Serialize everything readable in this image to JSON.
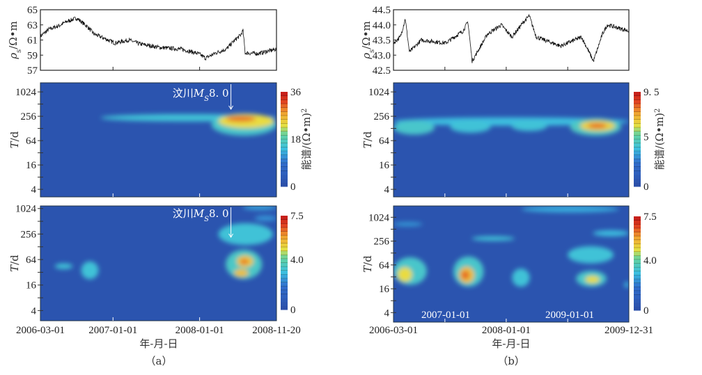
{
  "chart_data": [
    {
      "panel": "a",
      "type": "line",
      "id": "a_line",
      "ylabel": {
        "symbol": "ρ",
        "sub": "s",
        "unit": "/Ω•m"
      },
      "yticks": [
        "65",
        "63",
        "61",
        "59",
        "57"
      ],
      "ylim": [
        57,
        65
      ],
      "xlim": [
        "2006-03-01",
        "2008-11-20"
      ],
      "xticks": [
        "2007-01-01",
        "2008-01-01"
      ],
      "anchors": [
        [
          "2006-03-01",
          61.5
        ],
        [
          "2006-04-05",
          62.4
        ],
        [
          "2006-05-19",
          62.9
        ],
        [
          "2006-06-18",
          63.4
        ],
        [
          "2006-08-01",
          63.9
        ],
        [
          "2006-09-14",
          62.8
        ],
        [
          "2006-10-13",
          61.8
        ],
        [
          "2006-11-26",
          61.2
        ],
        [
          "2007-01-09",
          60.6
        ],
        [
          "2007-03-09",
          61.0
        ],
        [
          "2007-04-22",
          60.5
        ],
        [
          "2007-07-19",
          60.0
        ],
        [
          "2007-10-15",
          59.8
        ],
        [
          "2007-12-27",
          59.2
        ],
        [
          "2008-01-26",
          58.6
        ],
        [
          "2008-03-10",
          59.3
        ],
        [
          "2008-04-23",
          59.8
        ],
        [
          "2008-05-22",
          60.8
        ],
        [
          "2008-06-20",
          61.6
        ],
        [
          "2008-07-02",
          62.2
        ],
        [
          "2008-07-11",
          59.3
        ],
        [
          "2008-09-02",
          59.2
        ],
        [
          "2008-11-20",
          59.8
        ]
      ]
    },
    {
      "panel": "a",
      "type": "heatmap",
      "id": "a_s1",
      "ylabel": {
        "symbol": "T",
        "unit": "/d"
      },
      "yscale": "log2",
      "yticks": [
        "1024",
        "256",
        "64",
        "16",
        "4"
      ],
      "ylim": [
        2.6,
        1720
      ],
      "xlim": [
        "2006-03-01",
        "2008-11-20"
      ],
      "xticks": [
        "2007-01-01",
        "2008-01-01"
      ],
      "colorbar": {
        "max": 36,
        "ticks": [
          "36",
          "18",
          "0"
        ],
        "tick_values": [
          36,
          18,
          0
        ],
        "label": "能谱/(Ω•m)",
        "label_sup": "2"
      },
      "annotation": {
        "text_pre": "汶川",
        "M": "M",
        "sub": "S",
        "text_post": "8. 0",
        "date": "2008-05-12"
      },
      "blobs": [
        {
          "t": [
            "2006-11-10",
            "2008-11-20"
          ],
          "T": [
            190,
            290
          ],
          "level": 0.42
        },
        {
          "t": [
            "2008-02-20",
            "2008-11-20"
          ],
          "T": [
            85,
            300
          ],
          "level": 0.45
        },
        {
          "t": [
            "2008-03-20",
            "2008-11-10"
          ],
          "T": [
            130,
            290
          ],
          "level": 0.66
        },
        {
          "t": [
            "2008-04-20",
            "2008-08-25"
          ],
          "T": [
            190,
            260
          ],
          "level": 0.85
        }
      ]
    },
    {
      "panel": "a",
      "type": "heatmap",
      "id": "a_s2",
      "ylabel": {
        "symbol": "T",
        "unit": "/d"
      },
      "yscale": "log2",
      "yticks": [
        "1024",
        "256",
        "64",
        "16",
        "4"
      ],
      "ylim": [
        2.3,
        1180
      ],
      "xlim": [
        "2006-03-01",
        "2008-11-20"
      ],
      "colorbar": {
        "max": 7.5,
        "ticks": [
          "7.5",
          "4.0",
          "0"
        ],
        "tick_values": [
          7.5,
          4.0,
          0
        ],
        "label": "",
        "label_sup": ""
      },
      "annotation": {
        "text_pre": "汶川",
        "M": "M",
        "sub": "S",
        "text_post": "8. 0",
        "date": "2008-05-12"
      },
      "blobs": [
        {
          "t": [
            "2006-05-01",
            "2006-07-15"
          ],
          "T": [
            38,
            52
          ],
          "level": 0.42
        },
        {
          "t": [
            "2006-08-20",
            "2006-11-01"
          ],
          "T": [
            22,
            58
          ],
          "level": 0.42
        },
        {
          "t": [
            "2008-07-01",
            "2008-11-20"
          ],
          "T": [
            950,
            1250
          ],
          "level": 0.35
        },
        {
          "t": [
            "2008-08-20",
            "2008-11-20"
          ],
          "T": [
            520,
            700
          ],
          "level": 0.32
        },
        {
          "t": [
            "2008-03-20",
            "2008-11-05"
          ],
          "T": [
            140,
            460
          ],
          "level": 0.42
        },
        {
          "t": [
            "2008-04-20",
            "2008-09-20"
          ],
          "T": [
            22,
            110
          ],
          "level": 0.46
        },
        {
          "t": [
            "2008-06-05",
            "2008-08-15"
          ],
          "T": [
            42,
            80
          ],
          "level": 0.7
        },
        {
          "t": [
            "2008-05-25",
            "2008-07-25"
          ],
          "T": [
            25,
            38
          ],
          "level": 0.72
        },
        {
          "t": [
            "2008-06-20",
            "2008-07-25"
          ],
          "T": [
            50,
            65
          ],
          "level": 0.85
        }
      ]
    },
    {
      "panel": "b",
      "type": "line",
      "id": "b_line",
      "ylabel": {
        "symbol": "ρ",
        "sub": "s",
        "unit": "/Ω•m"
      },
      "yticks": [
        "44.5",
        "44.0",
        "43.5",
        "43.0",
        "42.5"
      ],
      "ylim": [
        42.5,
        44.5
      ],
      "xlim": [
        "2006-03-01",
        "2009-12-31"
      ],
      "xticks": [
        "2007-01-01",
        "2008-01-01",
        "2009-01-01"
      ],
      "anchors": [
        [
          "2006-03-01",
          43.4
        ],
        [
          "2006-04-11",
          43.6
        ],
        [
          "2006-05-10",
          44.2
        ],
        [
          "2006-06-04",
          43.1
        ],
        [
          "2006-08-14",
          43.5
        ],
        [
          "2007-01-06",
          43.4
        ],
        [
          "2007-04-19",
          43.8
        ],
        [
          "2007-05-18",
          44.1
        ],
        [
          "2007-06-12",
          42.8
        ],
        [
          "2007-09-12",
          43.7
        ],
        [
          "2007-12-03",
          44.0
        ],
        [
          "2008-02-04",
          43.6
        ],
        [
          "2008-04-14",
          44.1
        ],
        [
          "2008-05-17",
          44.3
        ],
        [
          "2008-06-28",
          43.6
        ],
        [
          "2008-11-20",
          43.3
        ],
        [
          "2009-03-24",
          43.6
        ],
        [
          "2009-05-17",
          43.0
        ],
        [
          "2009-06-03",
          42.8
        ],
        [
          "2009-07-27",
          43.7
        ],
        [
          "2009-08-25",
          44.0
        ],
        [
          "2009-12-31",
          43.8
        ]
      ]
    },
    {
      "panel": "b",
      "type": "heatmap",
      "id": "b_s1",
      "ylabel": {
        "symbol": "T",
        "unit": "/d"
      },
      "yscale": "log2",
      "yticks": [
        "1024",
        "256",
        "64",
        "16",
        "4"
      ],
      "ylim": [
        2.6,
        1720
      ],
      "xlim": [
        "2006-03-01",
        "2009-12-31"
      ],
      "xticks": [
        "2007-01-01",
        "2008-01-01",
        "2009-01-01"
      ],
      "colorbar": {
        "max": 9.5,
        "ticks": [
          "9. 5",
          "5",
          "0"
        ],
        "tick_values": [
          9.5,
          5,
          0
        ],
        "label": "能谱/(Ω•m)",
        "label_sup": "2"
      },
      "blobs": [
        {
          "t": [
            "2006-03-01",
            "2009-12-31"
          ],
          "T": [
            150,
            240
          ],
          "level": 0.4
        },
        {
          "t": [
            "2006-03-01",
            "2006-11-01"
          ],
          "T": [
            90,
            200
          ],
          "level": 0.45
        },
        {
          "t": [
            "2007-02-01",
            "2007-10-01"
          ],
          "T": [
            100,
            200
          ],
          "level": 0.42
        },
        {
          "t": [
            "2008-02-01",
            "2008-09-01"
          ],
          "T": [
            110,
            200
          ],
          "level": 0.42
        },
        {
          "t": [
            "2009-01-15",
            "2009-11-15"
          ],
          "T": [
            85,
            230
          ],
          "level": 0.47
        },
        {
          "t": [
            "2009-03-15",
            "2009-10-10"
          ],
          "T": [
            110,
            200
          ],
          "level": 0.68
        },
        {
          "t": [
            "2009-05-01",
            "2009-08-20"
          ],
          "T": [
            130,
            170
          ],
          "level": 0.86
        }
      ]
    },
    {
      "panel": "b",
      "type": "heatmap",
      "id": "b_s2",
      "ylabel": {
        "symbol": "T",
        "unit": "/d"
      },
      "yscale": "log2",
      "yticks": [
        "1024",
        "256",
        "64",
        "16",
        "4"
      ],
      "ylim": [
        2.3,
        1980
      ],
      "xlim": [
        "2006-03-01",
        "2009-12-31"
      ],
      "xtick_labels": [
        "2006-03-01",
        "2008-01-01",
        "2009-12-31"
      ],
      "inner_labels": [
        "2007-01-01",
        "2009-01-01"
      ],
      "xlabel": "年-月-日",
      "colorbar": {
        "max": 7.5,
        "ticks": [
          "7.5",
          "4.0",
          "0"
        ],
        "tick_values": [
          7.5,
          4.0,
          0
        ],
        "label": "",
        "label_sup": ""
      },
      "blobs": [
        {
          "t": [
            "2008-04-01",
            "2009-11-01"
          ],
          "T": [
            1350,
            2000
          ],
          "level": 0.36
        },
        {
          "t": [
            "2006-03-01",
            "2006-08-20"
          ],
          "T": [
            620,
            760
          ],
          "level": 0.33
        },
        {
          "t": [
            "2007-06-10",
            "2008-02-20"
          ],
          "T": [
            260,
            340
          ],
          "level": 0.42
        },
        {
          "t": [
            "2009-06-01",
            "2009-12-31"
          ],
          "T": [
            340,
            480
          ],
          "level": 0.4
        },
        {
          "t": [
            "2006-03-01",
            "2006-09-15"
          ],
          "T": [
            20,
            100
          ],
          "level": 0.45
        },
        {
          "t": [
            "2006-03-25",
            "2006-06-20"
          ],
          "T": [
            24,
            56
          ],
          "level": 0.66
        },
        {
          "t": [
            "2007-02-20",
            "2007-08-20"
          ],
          "T": [
            18,
            105
          ],
          "level": 0.45
        },
        {
          "t": [
            "2007-03-25",
            "2007-06-25"
          ],
          "T": [
            22,
            58
          ],
          "level": 0.72
        },
        {
          "t": [
            "2007-04-10",
            "2007-05-25"
          ],
          "T": [
            28,
            45
          ],
          "level": 0.86
        },
        {
          "t": [
            "2008-02-05",
            "2008-05-20"
          ],
          "T": [
            18,
            52
          ],
          "level": 0.42
        },
        {
          "t": [
            "2009-01-01",
            "2009-10-01"
          ],
          "T": [
            70,
            190
          ],
          "level": 0.42
        },
        {
          "t": [
            "2009-02-20",
            "2009-08-20"
          ],
          "T": [
            18,
            46
          ],
          "level": 0.45
        },
        {
          "t": [
            "2009-04-15",
            "2009-07-10"
          ],
          "T": [
            22,
            34
          ],
          "level": 0.66
        },
        {
          "t": [
            "2009-12-05",
            "2009-12-31"
          ],
          "T": [
            17,
            24
          ],
          "level": 0.4
        }
      ]
    }
  ],
  "panel_a": {
    "xtick_labels": [
      "2006-03-01",
      "2007-01-01",
      "2008-01-01",
      "2008-11-20"
    ],
    "xlabel": "年-月-日",
    "caption": "（a）"
  },
  "panel_b": {
    "caption": "（b）"
  },
  "colors": {
    "background": "#2d55ae",
    "cyan": "#3cc0e0",
    "yellow": "#e8e040",
    "red": "#d82020"
  }
}
